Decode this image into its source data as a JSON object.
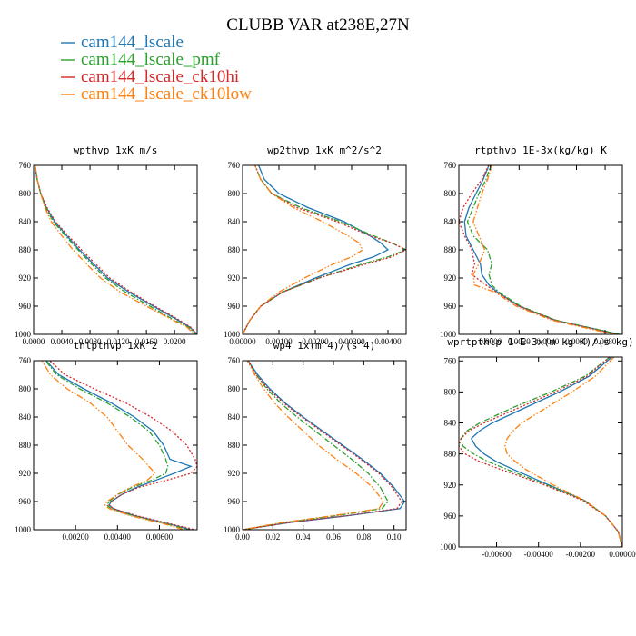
{
  "title": "CLUBB VAR at238E,27N",
  "series_styles": [
    {
      "name": "cam144_lscale",
      "color": "#1f77b4",
      "dash": ""
    },
    {
      "name": "cam144_lscale_pmf",
      "color": "#2ca02c",
      "dash": "6,2,1.5,2"
    },
    {
      "name": "cam144_lscale_ck10hi",
      "color": "#d62728",
      "dash": "2,2"
    },
    {
      "name": "cam144_lscale_ck10low",
      "color": "#ff7f0e",
      "dash": "7,2,1.5,2,1.5,2"
    }
  ],
  "chart_data": [
    {
      "type": "line",
      "title": "wpthvp  1xK m/s",
      "xlim": [
        0.0,
        0.0232
      ],
      "xticks": [
        0.0,
        0.004,
        0.008,
        0.012,
        0.016,
        0.02
      ],
      "xtick_labels": [
        "0.0000",
        "0.0040",
        "0.0080",
        "0.0120",
        "0.0160",
        "0.0200"
      ],
      "ylim": [
        760,
        1000
      ],
      "yticks": [
        760,
        800,
        840,
        880,
        920,
        960,
        1000
      ],
      "y": [
        760,
        780,
        800,
        820,
        840,
        860,
        880,
        900,
        920,
        940,
        960,
        980,
        990,
        1000
      ],
      "series": [
        {
          "name": "cam144_lscale",
          "values": [
            0.0002,
            0.0005,
            0.001,
            0.0018,
            0.003,
            0.0047,
            0.0065,
            0.0085,
            0.0105,
            0.0135,
            0.017,
            0.0205,
            0.0222,
            0.0232
          ]
        },
        {
          "name": "cam144_lscale_pmf",
          "values": [
            0.0002,
            0.0005,
            0.001,
            0.0017,
            0.0028,
            0.0045,
            0.0063,
            0.0082,
            0.0102,
            0.013,
            0.0165,
            0.02,
            0.022,
            0.023
          ]
        },
        {
          "name": "cam144_lscale_ck10hi",
          "values": [
            0.0002,
            0.0005,
            0.001,
            0.0019,
            0.0031,
            0.0049,
            0.0068,
            0.0088,
            0.0108,
            0.0138,
            0.0172,
            0.0207,
            0.0223,
            0.0232
          ]
        },
        {
          "name": "cam144_lscale_ck10low",
          "values": [
            0.0002,
            0.0005,
            0.001,
            0.0016,
            0.0025,
            0.004,
            0.0056,
            0.0075,
            0.0095,
            0.0123,
            0.016,
            0.0198,
            0.0218,
            0.0228
          ]
        }
      ]
    },
    {
      "type": "line",
      "title": "wp2thvp  1xK m^2/s^2",
      "xlim": [
        0.0,
        0.0045
      ],
      "xticks": [
        0.0,
        0.001,
        0.002,
        0.003,
        0.004
      ],
      "xtick_labels": [
        "0.00000",
        "0.00100",
        "0.00200",
        "0.00300",
        "0.00400"
      ],
      "ylim": [
        760,
        1000
      ],
      "yticks": [
        760,
        800,
        840,
        880,
        920,
        960,
        1000
      ],
      "y": [
        755,
        780,
        800,
        820,
        840,
        860,
        870,
        880,
        890,
        900,
        920,
        940,
        960,
        980,
        1000
      ],
      "series": [
        {
          "name": "cam144_lscale",
          "values": [
            0.0004,
            0.0006,
            0.001,
            0.0018,
            0.0028,
            0.0035,
            0.0038,
            0.004,
            0.0036,
            0.003,
            0.002,
            0.0011,
            0.0005,
            0.0002,
            0.0
          ]
        },
        {
          "name": "cam144_lscale_pmf",
          "values": [
            0.0003,
            0.0005,
            0.0008,
            0.0016,
            0.0027,
            0.0036,
            0.0041,
            0.0045,
            0.004,
            0.0033,
            0.0021,
            0.0011,
            0.0005,
            0.0002,
            0.0
          ]
        },
        {
          "name": "cam144_lscale_ck10hi",
          "values": [
            0.0003,
            0.0005,
            0.0008,
            0.0015,
            0.0026,
            0.0035,
            0.0041,
            0.0045,
            0.0041,
            0.0034,
            0.0021,
            0.0011,
            0.0005,
            0.0002,
            0.0
          ]
        },
        {
          "name": "cam144_lscale_ck10low",
          "values": [
            0.0003,
            0.0005,
            0.0008,
            0.0014,
            0.0022,
            0.0029,
            0.0032,
            0.0033,
            0.003,
            0.0025,
            0.0017,
            0.001,
            0.0005,
            0.0002,
            0.0
          ]
        }
      ]
    },
    {
      "type": "line",
      "title": "rtpthvp  1E-3x(kg/kg) K",
      "xlim": [
        -0.0022,
        0.0092
      ],
      "xticks": [
        0.0,
        0.002,
        0.004,
        0.006,
        0.008
      ],
      "xtick_labels": [
        "0.0000",
        "0.0020",
        "0.0040",
        "0.0060",
        "0.0080"
      ],
      "ylim": [
        760,
        1000
      ],
      "yticks": [
        760,
        800,
        840,
        880,
        920,
        960,
        1000
      ],
      "y": [
        755,
        780,
        800,
        820,
        840,
        860,
        880,
        900,
        915,
        930,
        940,
        960,
        980,
        1000
      ],
      "series": [
        {
          "name": "cam144_lscale",
          "values": [
            0.0,
            -0.0005,
            -0.001,
            -0.0015,
            -0.0018,
            -0.0017,
            -0.0012,
            -0.0007,
            -0.0006,
            -0.0001,
            0.0005,
            0.002,
            0.0045,
            0.009
          ]
        },
        {
          "name": "cam144_lscale_pmf",
          "values": [
            0.0001,
            -0.0003,
            -0.0008,
            -0.0012,
            -0.0016,
            -0.0012,
            -0.0002,
            0.0001,
            -0.0001,
            0.0001,
            0.0006,
            0.0021,
            0.0046,
            0.009
          ]
        },
        {
          "name": "cam144_lscale_ck10hi",
          "values": [
            0.0,
            -0.0006,
            -0.0013,
            -0.0019,
            -0.0022,
            -0.0018,
            -0.0013,
            -0.0011,
            -0.0013,
            -0.0003,
            0.0004,
            0.002,
            0.0045,
            0.0088
          ]
        },
        {
          "name": "cam144_lscale_ck10low",
          "values": [
            0.0002,
            -0.0002,
            -0.0006,
            -0.0009,
            -0.0012,
            -0.0008,
            -0.0004,
            -0.0008,
            -0.0012,
            -0.0011,
            0.0003,
            0.0018,
            0.0043,
            0.0086
          ]
        }
      ]
    },
    {
      "type": "line",
      "title": "thlpthvp  1xK^2",
      "xlim": [
        0.0,
        0.0078
      ],
      "xticks": [
        0.002,
        0.004,
        0.006
      ],
      "xtick_labels": [
        "0.00200",
        "0.00400",
        "0.00600"
      ],
      "ylim": [
        760,
        1000
      ],
      "yticks": [
        760,
        800,
        840,
        880,
        920,
        960,
        1000
      ],
      "y": [
        750,
        780,
        800,
        820,
        840,
        860,
        880,
        900,
        910,
        920,
        930,
        940,
        950,
        960,
        965,
        970,
        980,
        990,
        1000
      ],
      "series": [
        {
          "name": "cam144_lscale",
          "values": [
            0.0003,
            0.0012,
            0.0024,
            0.0037,
            0.0048,
            0.0057,
            0.0062,
            0.0065,
            0.0075,
            0.0067,
            0.0058,
            0.0049,
            0.0042,
            0.0037,
            0.0036,
            0.0038,
            0.0048,
            0.0062,
            0.0075
          ]
        },
        {
          "name": "cam144_lscale_pmf",
          "values": [
            0.0003,
            0.0011,
            0.0022,
            0.0035,
            0.0046,
            0.0055,
            0.006,
            0.0063,
            0.0064,
            0.0063,
            0.0056,
            0.0047,
            0.004,
            0.0036,
            0.0035,
            0.0037,
            0.0047,
            0.0061,
            0.0074
          ]
        },
        {
          "name": "cam144_lscale_ck10hi",
          "values": [
            0.0004,
            0.0015,
            0.0029,
            0.0044,
            0.0056,
            0.0066,
            0.0073,
            0.0077,
            0.0078,
            0.0075,
            0.0063,
            0.005,
            0.0042,
            0.0037,
            0.0036,
            0.0038,
            0.0049,
            0.0063,
            0.0077
          ]
        },
        {
          "name": "cam144_lscale_ck10low",
          "values": [
            0.0002,
            0.0008,
            0.0016,
            0.0027,
            0.0035,
            0.004,
            0.0045,
            0.0052,
            0.0055,
            0.0058,
            0.0054,
            0.0046,
            0.004,
            0.0035,
            0.0034,
            0.0036,
            0.0046,
            0.006,
            0.0072
          ]
        }
      ]
    },
    {
      "type": "line",
      "title": "wp4  1x(m^4)/(s^4)",
      "xlim": [
        0.0,
        0.108
      ],
      "xticks": [
        0.0,
        0.02,
        0.04,
        0.06,
        0.08,
        0.1
      ],
      "xtick_labels": [
        "0.00",
        "0.02",
        "0.04",
        "0.06",
        "0.08",
        "0.10"
      ],
      "ylim": [
        760,
        1000
      ],
      "yticks": [
        760,
        800,
        840,
        880,
        920,
        960,
        1000
      ],
      "y": [
        755,
        780,
        800,
        820,
        840,
        860,
        880,
        900,
        920,
        940,
        960,
        970,
        980,
        990,
        1000
      ],
      "series": [
        {
          "name": "cam144_lscale",
          "values": [
            0.002,
            0.01,
            0.018,
            0.028,
            0.04,
            0.053,
            0.066,
            0.079,
            0.091,
            0.1,
            0.107,
            0.104,
            0.07,
            0.03,
            0.0
          ]
        },
        {
          "name": "cam144_lscale_pmf",
          "values": [
            0.002,
            0.009,
            0.016,
            0.025,
            0.036,
            0.048,
            0.06,
            0.072,
            0.083,
            0.091,
            0.096,
            0.092,
            0.062,
            0.027,
            0.0
          ]
        },
        {
          "name": "cam144_lscale_ck10hi",
          "values": [
            0.002,
            0.009,
            0.017,
            0.027,
            0.039,
            0.052,
            0.065,
            0.078,
            0.09,
            0.099,
            0.105,
            0.102,
            0.069,
            0.03,
            0.0
          ]
        },
        {
          "name": "cam144_lscale_ck10low",
          "values": [
            0.002,
            0.008,
            0.014,
            0.021,
            0.03,
            0.04,
            0.05,
            0.062,
            0.075,
            0.086,
            0.093,
            0.09,
            0.06,
            0.025,
            0.0
          ]
        }
      ]
    },
    {
      "type": "line",
      "title": "wprtpthlp  1-E-3x(m kg K)/(s kg)",
      "xlim": [
        -0.0078,
        0.0
      ],
      "xticks": [
        -0.006,
        -0.004,
        -0.002,
        0.0
      ],
      "xtick_labels": [
        "-0.00600",
        "-0.00400",
        "-0.00200",
        "0.00000"
      ],
      "ylim": [
        755,
        1000
      ],
      "yticks": [
        760,
        800,
        840,
        880,
        920,
        960,
        1000
      ],
      "y": [
        755,
        780,
        800,
        820,
        840,
        850,
        860,
        870,
        880,
        890,
        900,
        920,
        940,
        960,
        980,
        1000
      ],
      "series": [
        {
          "name": "cam144_lscale",
          "values": [
            -0.0005,
            -0.0016,
            -0.003,
            -0.0046,
            -0.0062,
            -0.0068,
            -0.0072,
            -0.007,
            -0.0066,
            -0.006,
            -0.0052,
            -0.0035,
            -0.0018,
            -0.0008,
            -0.0002,
            0.0
          ]
        },
        {
          "name": "cam144_lscale_pmf",
          "values": [
            -0.0006,
            -0.0018,
            -0.0034,
            -0.0052,
            -0.0068,
            -0.0074,
            -0.0077,
            -0.0076,
            -0.0071,
            -0.0064,
            -0.0055,
            -0.0036,
            -0.0018,
            -0.0008,
            -0.0002,
            0.0
          ]
        },
        {
          "name": "cam144_lscale_ck10hi",
          "values": [
            -0.0006,
            -0.0017,
            -0.0032,
            -0.0049,
            -0.0066,
            -0.0073,
            -0.0077,
            -0.0078,
            -0.0075,
            -0.0068,
            -0.0058,
            -0.0037,
            -0.0019,
            -0.0008,
            -0.0002,
            0.0
          ]
        },
        {
          "name": "cam144_lscale_ck10low",
          "values": [
            -0.0004,
            -0.0013,
            -0.0024,
            -0.0036,
            -0.0048,
            -0.0052,
            -0.0055,
            -0.0056,
            -0.0055,
            -0.0051,
            -0.0046,
            -0.0033,
            -0.0018,
            -0.0008,
            -0.0002,
            0.0
          ]
        }
      ]
    }
  ]
}
